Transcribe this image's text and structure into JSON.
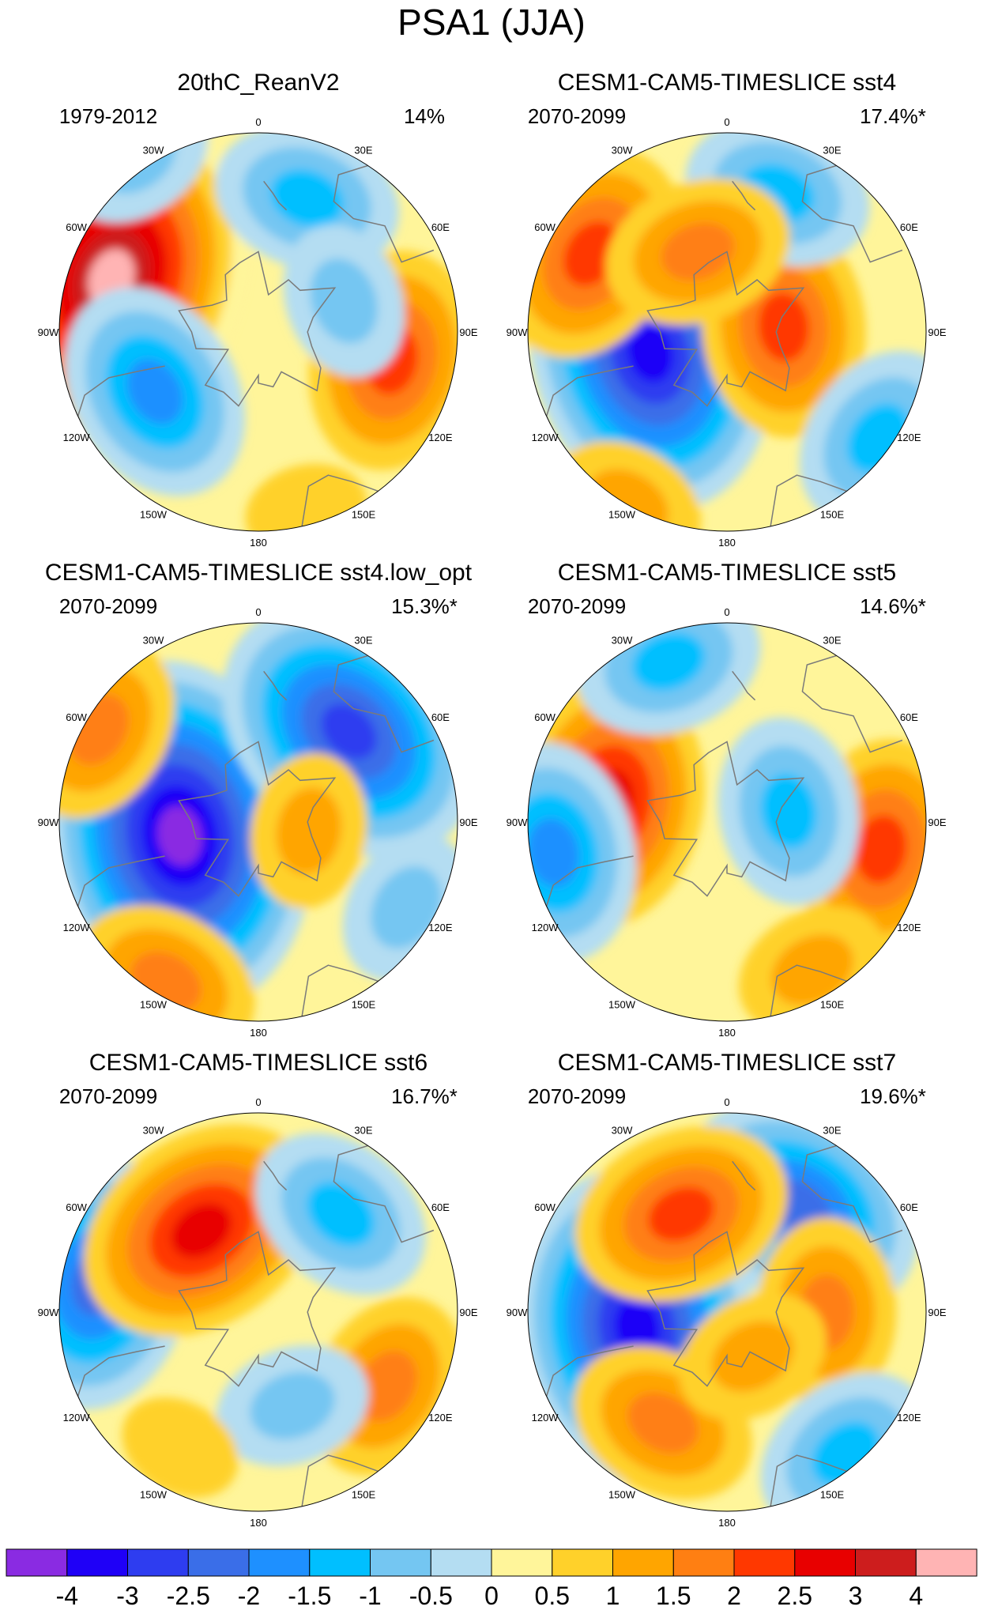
{
  "figure": {
    "title": "PSA1 (JJA)"
  },
  "colors": {
    "levels": [
      "#8a2be2",
      "#1f00f7",
      "#2e3df0",
      "#3a6ee8",
      "#1e90ff",
      "#00bfff",
      "#74c6f2",
      "#b4ddf2",
      "#fff59a",
      "#ffd12a",
      "#ffa500",
      "#ff7f12",
      "#ff3800",
      "#e80000",
      "#cd1d1d",
      "#ffb4b4"
    ],
    "land_outline": "#7a7a7a"
  },
  "colorbar": {
    "labels": [
      "-4",
      "-3",
      "-2.5",
      "-2",
      "-1.5",
      "-1",
      "-0.5",
      "0",
      "0.5",
      "1",
      "1.5",
      "2",
      "2.5",
      "3",
      "4"
    ]
  },
  "lon_labels": [
    "0",
    "30E",
    "60E",
    "90E",
    "120E",
    "150E",
    "180",
    "150W",
    "120W",
    "90W",
    "60W",
    "30W"
  ],
  "panels": [
    {
      "title": "20thC_ReanV2",
      "period": "1979-2012",
      "percent": "14%",
      "background_level": 8,
      "blobs": [
        {
          "lon": 250,
          "lat": -35,
          "level": 15,
          "levels": [
            8,
            9,
            10,
            11,
            12,
            13,
            14,
            15
          ]
        },
        {
          "lon": 300,
          "lat": -48,
          "level": 4,
          "levels": [
            7,
            6,
            5,
            4
          ]
        },
        {
          "lon": 78,
          "lat": -42,
          "level": 12,
          "levels": [
            9,
            10,
            11,
            12
          ]
        },
        {
          "lon": 15,
          "lat": -25,
          "level": 9,
          "levels": [
            9
          ]
        },
        {
          "lon": 160,
          "lat": -40,
          "level": 5,
          "levels": [
            7,
            6,
            5
          ]
        },
        {
          "lon": 215,
          "lat": -15,
          "level": 6,
          "levels": [
            7,
            6
          ]
        },
        {
          "lon": 110,
          "lat": -58,
          "level": 6,
          "levels": [
            7,
            6
          ]
        }
      ]
    },
    {
      "title": "CESM1-CAM5-TIMESLICE sst4",
      "period": "2070-2099",
      "percent": "17.4%*",
      "background_level": 8,
      "blobs": [
        {
          "lon": 285,
          "lat": -62,
          "level": 2,
          "levels": [
            7,
            6,
            5,
            4,
            3,
            2,
            1
          ]
        },
        {
          "lon": 240,
          "lat": -35,
          "level": 12,
          "levels": [
            9,
            10,
            11,
            12
          ]
        },
        {
          "lon": 95,
          "lat": -70,
          "level": 12,
          "levels": [
            9,
            10,
            11,
            12
          ]
        },
        {
          "lon": 330,
          "lat": -20,
          "level": 10,
          "levels": [
            9,
            10
          ]
        },
        {
          "lon": 55,
          "lat": -25,
          "level": 5,
          "levels": [
            7,
            6,
            5
          ]
        },
        {
          "lon": 160,
          "lat": -38,
          "level": 5,
          "levels": [
            7,
            6,
            5
          ]
        },
        {
          "lon": 200,
          "lat": -60,
          "level": 11,
          "levels": [
            9,
            10,
            11
          ]
        }
      ]
    },
    {
      "title": "CESM1-CAM5-TIMESLICE sst4.low_opt",
      "period": "2070-2099",
      "percent": "15.3%*",
      "background_level": 8,
      "blobs": [
        {
          "lon": 280,
          "lat": -62,
          "level": 0,
          "levels": [
            7,
            6,
            5,
            4,
            3,
            2,
            1,
            0
          ]
        },
        {
          "lon": 135,
          "lat": -45,
          "level": 2,
          "levels": [
            7,
            6,
            5,
            4,
            3,
            2
          ]
        },
        {
          "lon": 240,
          "lat": -25,
          "level": 11,
          "levels": [
            9,
            10,
            11
          ]
        },
        {
          "lon": 330,
          "lat": -25,
          "level": 11,
          "levels": [
            9,
            10,
            11
          ]
        },
        {
          "lon": 80,
          "lat": -72,
          "level": 10,
          "levels": [
            9,
            10
          ]
        },
        {
          "lon": 60,
          "lat": -30,
          "level": 6,
          "levels": [
            7,
            6
          ]
        }
      ]
    },
    {
      "title": "CESM1-CAM5-TIMESLICE sst5",
      "period": "2070-2099",
      "percent": "14.6%*",
      "background_level": 8,
      "blobs": [
        {
          "lon": 260,
          "lat": -48,
          "level": 12,
          "levels": [
            9,
            10,
            11,
            12,
            13
          ]
        },
        {
          "lon": 80,
          "lat": -35,
          "level": 12,
          "levels": [
            9,
            10,
            11,
            12
          ]
        },
        {
          "lon": 280,
          "lat": -28,
          "level": 4,
          "levels": [
            7,
            6,
            5,
            4
          ]
        },
        {
          "lon": 200,
          "lat": -30,
          "level": 5,
          "levels": [
            7,
            6,
            5
          ]
        },
        {
          "lon": 100,
          "lat": -68,
          "level": 5,
          "levels": [
            7,
            6,
            5
          ]
        },
        {
          "lon": 30,
          "lat": -30,
          "level": 10,
          "levels": [
            9,
            10
          ]
        }
      ]
    },
    {
      "title": "CESM1-CAM5-TIMESLICE sst6",
      "period": "2070-2099",
      "percent": "16.7%*",
      "background_level": 8,
      "blobs": [
        {
          "lon": 260,
          "lat": -32,
          "level": 3,
          "levels": [
            7,
            6,
            5,
            4,
            3
          ]
        },
        {
          "lon": 215,
          "lat": -55,
          "level": 13,
          "levels": [
            9,
            10,
            11,
            12,
            13
          ]
        },
        {
          "lon": 60,
          "lat": -38,
          "level": 11,
          "levels": [
            9,
            10,
            11
          ]
        },
        {
          "lon": 140,
          "lat": -45,
          "level": 5,
          "levels": [
            7,
            6,
            5
          ]
        },
        {
          "lon": 20,
          "lat": -55,
          "level": 6,
          "levels": [
            7,
            6
          ]
        },
        {
          "lon": 330,
          "lat": -35,
          "level": 9,
          "levels": [
            9
          ]
        }
      ]
    },
    {
      "title": "CESM1-CAM5-TIMESLICE sst7",
      "period": "2070-2099",
      "percent": "19.6%*",
      "background_level": 8,
      "blobs": [
        {
          "lon": 280,
          "lat": -58,
          "level": 1,
          "levels": [
            7,
            6,
            5,
            4,
            3,
            2,
            1
          ]
        },
        {
          "lon": 145,
          "lat": -45,
          "level": 3,
          "levels": [
            7,
            6,
            5,
            4,
            3
          ]
        },
        {
          "lon": 205,
          "lat": -52,
          "level": 12,
          "levels": [
            9,
            10,
            11,
            12
          ]
        },
        {
          "lon": 90,
          "lat": -55,
          "level": 11,
          "levels": [
            9,
            10,
            11
          ]
        },
        {
          "lon": 330,
          "lat": -45,
          "level": 11,
          "levels": [
            9,
            10,
            11
          ]
        },
        {
          "lon": 40,
          "lat": -25,
          "level": 5,
          "levels": [
            7,
            6,
            5
          ]
        },
        {
          "lon": 30,
          "lat": -72,
          "level": 10,
          "levels": [
            9,
            10
          ]
        }
      ]
    }
  ]
}
